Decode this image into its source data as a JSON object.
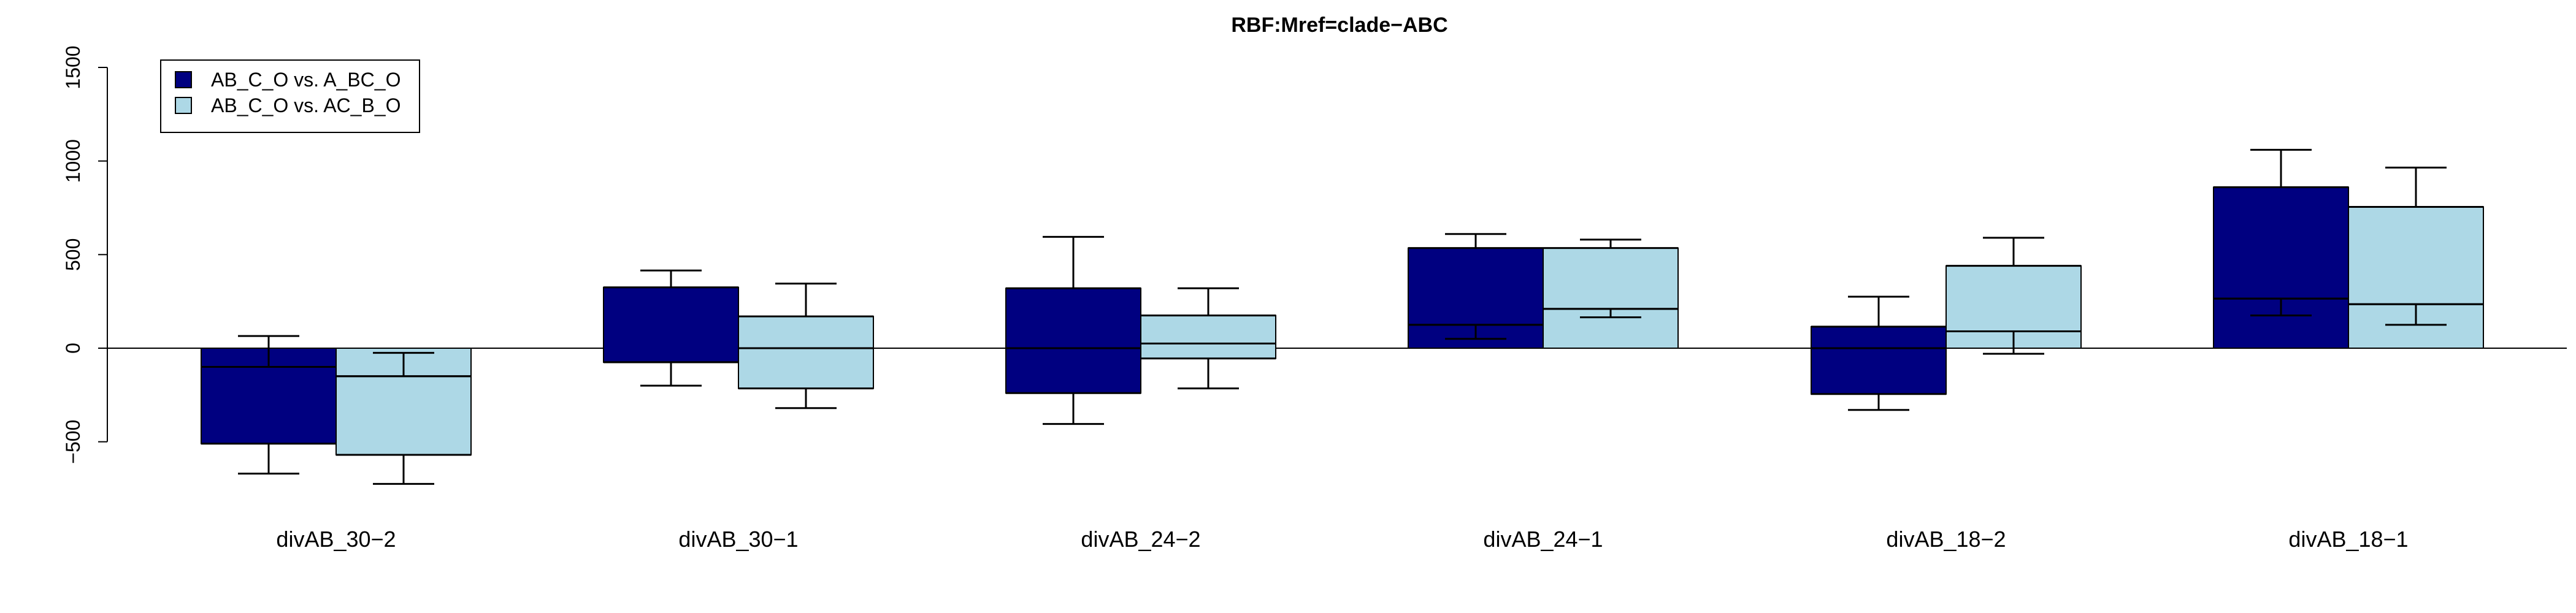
{
  "chart_data": {
    "type": "bar",
    "title": "RBF:Mref=clade−ABC",
    "categories": [
      "divAB_30−2",
      "divAB_30−1",
      "divAB_24−2",
      "divAB_24−1",
      "divAB_18−2",
      "divAB_18−1"
    ],
    "ylim": [
      -700,
      1500
    ],
    "yticks": [
      -500,
      0,
      500,
      1000,
      1500
    ],
    "ytick_labels": [
      "−500",
      "0",
      "500",
      "1000",
      "1500"
    ],
    "baseline": 0,
    "legend_position": "top-left",
    "series": [
      {
        "name": "AB_C_O vs. A_BC_O",
        "color": "#000080",
        "bars": [
          {
            "low": -510,
            "high": 0,
            "median": -100,
            "q1": -510,
            "q3": -100,
            "whisker_low": -670,
            "whisker_high": 65
          },
          {
            "low": -75,
            "high": 325,
            "median": -75,
            "q1": -75,
            "q3": 325,
            "whisker_low": -200,
            "whisker_high": 415
          },
          {
            "low": -240,
            "high": 320,
            "median": 0,
            "q1": -240,
            "q3": 320,
            "whisker_low": -405,
            "whisker_high": 595
          },
          {
            "low": 0,
            "high": 535,
            "median": 125,
            "q1": 125,
            "q3": 535,
            "whisker_low": 50,
            "whisker_high": 610
          },
          {
            "low": -245,
            "high": 115,
            "median": 0,
            "q1": -245,
            "q3": 115,
            "whisker_low": -330,
            "whisker_high": 275
          },
          {
            "low": 0,
            "high": 860,
            "median": 265,
            "q1": 265,
            "q3": 860,
            "whisker_low": 175,
            "whisker_high": 1060
          }
        ]
      },
      {
        "name": "AB_C_O vs. AC_B_O",
        "color": "#ADD8E6",
        "bars": [
          {
            "low": -570,
            "high": 0,
            "median": -150,
            "q1": -570,
            "q3": -150,
            "whisker_low": -725,
            "whisker_high": -25
          },
          {
            "low": -215,
            "high": 170,
            "median": 0,
            "q1": -215,
            "q3": 170,
            "whisker_low": -320,
            "whisker_high": 345
          },
          {
            "low": -55,
            "high": 175,
            "median": 25,
            "q1": -55,
            "q3": 175,
            "whisker_low": -215,
            "whisker_high": 320
          },
          {
            "low": 0,
            "high": 535,
            "median": 210,
            "q1": 210,
            "q3": 535,
            "whisker_low": 165,
            "whisker_high": 580
          },
          {
            "low": 0,
            "high": 440,
            "median": 90,
            "q1": 90,
            "q3": 440,
            "whisker_low": -30,
            "whisker_high": 590
          },
          {
            "low": 0,
            "high": 755,
            "median": 235,
            "q1": 235,
            "q3": 755,
            "whisker_low": 125,
            "whisker_high": 965
          }
        ]
      }
    ]
  }
}
